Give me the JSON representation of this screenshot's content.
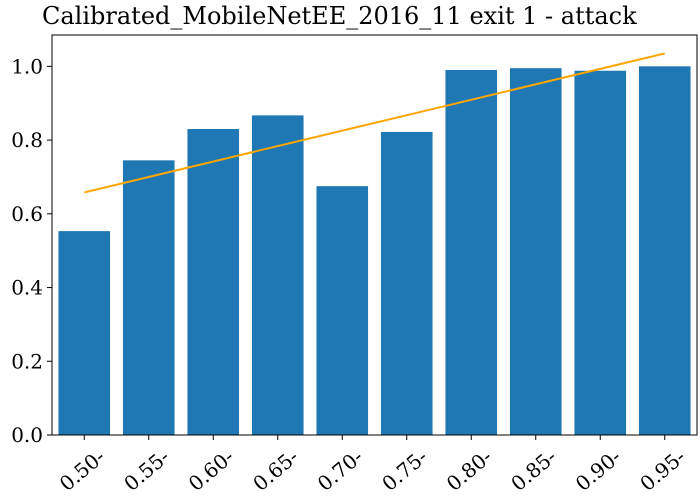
{
  "chart_data": {
    "type": "bar",
    "title": "Calibrated_MobileNetEE_2016_11 exit 1 - attack",
    "xlabel": "",
    "ylabel": "",
    "categories": [
      "0.50-",
      "0.55-",
      "0.60-",
      "0.65-",
      "0.70-",
      "0.75-",
      "0.80-",
      "0.85-",
      "0.90-",
      "0.95-"
    ],
    "values": [
      0.553,
      0.745,
      0.83,
      0.867,
      0.675,
      0.822,
      0.99,
      0.995,
      0.988,
      1.0
    ],
    "ylim": [
      0,
      1.085
    ],
    "yticks": [
      0.0,
      0.2,
      0.4,
      0.6,
      0.8,
      1.0
    ],
    "ytick_labels": [
      "0.0",
      "0.2",
      "0.4",
      "0.6",
      "0.8",
      "1.0"
    ],
    "trend_line": {
      "start": 0.658,
      "end": 1.035
    },
    "grid": false,
    "colors": {
      "bar": "#1f77b4",
      "trend": "#ffa500",
      "axis": "#000000"
    }
  }
}
